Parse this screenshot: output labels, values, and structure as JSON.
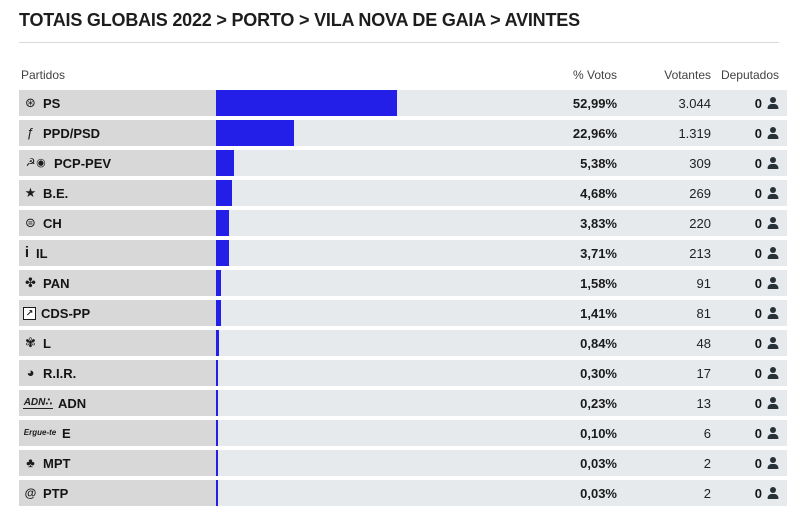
{
  "title": "TOTAIS GLOBAIS 2022 > PORTO > VILA NOVA DE GAIA > AVINTES",
  "table": {
    "headers": {
      "partidos": "Partidos",
      "pct_votos": "% Votos",
      "votantes": "Votantes",
      "deputados": "Deputados"
    }
  },
  "colors": {
    "bar": "#231ee8",
    "row_left_bg": "#d8d8d8",
    "row_right_bg": "#e6eaed",
    "title_text": "#1d1d1d"
  },
  "parties": [
    {
      "abbr": "PS",
      "icon_name": "ps-logo-icon",
      "icon_glyph": "⊛",
      "icon_class": "",
      "pct": "52,99%",
      "pct_value": 52.99,
      "votes": "3.044",
      "deputies": "0"
    },
    {
      "abbr": "PPD/PSD",
      "icon_name": "ppd-psd-logo-icon",
      "icon_glyph": "ƒ",
      "icon_class": "",
      "pct": "22,96%",
      "pct_value": 22.96,
      "votes": "1.319",
      "deputies": "0"
    },
    {
      "abbr": "PCP-PEV",
      "icon_name": "pcp-pev-logo-icon",
      "icon_glyph": "☭◉",
      "icon_class": "icon-pcp",
      "pct": "5,38%",
      "pct_value": 5.38,
      "votes": "309",
      "deputies": "0"
    },
    {
      "abbr": "B.E.",
      "icon_name": "be-logo-icon",
      "icon_glyph": "★",
      "icon_class": "",
      "pct": "4,68%",
      "pct_value": 4.68,
      "votes": "269",
      "deputies": "0"
    },
    {
      "abbr": "CH",
      "icon_name": "ch-logo-icon",
      "icon_glyph": "⊜",
      "icon_class": "",
      "pct": "3,83%",
      "pct_value": 3.83,
      "votes": "220",
      "deputies": "0"
    },
    {
      "abbr": "IL",
      "icon_name": "il-logo-icon",
      "icon_glyph": "i",
      "icon_class": "icon-il",
      "pct": "3,71%",
      "pct_value": 3.71,
      "votes": "213",
      "deputies": "0"
    },
    {
      "abbr": "PAN",
      "icon_name": "pan-logo-icon",
      "icon_glyph": "✤",
      "icon_class": "",
      "pct": "1,58%",
      "pct_value": 1.58,
      "votes": "91",
      "deputies": "0"
    },
    {
      "abbr": "CDS-PP",
      "icon_name": "cds-pp-logo-icon",
      "icon_glyph": "↗",
      "icon_class": "icon-boxed",
      "pct": "1,41%",
      "pct_value": 1.41,
      "votes": "81",
      "deputies": "0"
    },
    {
      "abbr": "L",
      "icon_name": "livre-logo-icon",
      "icon_glyph": "✾",
      "icon_class": "",
      "pct": "0,84%",
      "pct_value": 0.84,
      "votes": "48",
      "deputies": "0"
    },
    {
      "abbr": "R.I.R.",
      "icon_name": "rir-logo-icon",
      "icon_glyph": "◕",
      "icon_class": "",
      "pct": "0,30%",
      "pct_value": 0.3,
      "votes": "17",
      "deputies": "0"
    },
    {
      "abbr": "ADN",
      "icon_name": "adn-logo-icon",
      "icon_glyph": "ADN∴",
      "icon_class": "icon-adn",
      "pct": "0,23%",
      "pct_value": 0.23,
      "votes": "13",
      "deputies": "0"
    },
    {
      "abbr": "E",
      "icon_name": "erguete-logo-icon",
      "icon_glyph": "Ergue-te",
      "icon_class": "icon-erguete",
      "pct": "0,10%",
      "pct_value": 0.1,
      "votes": "6",
      "deputies": "0"
    },
    {
      "abbr": "MPT",
      "icon_name": "mpt-logo-icon",
      "icon_glyph": "♣",
      "icon_class": "",
      "pct": "0,03%",
      "pct_value": 0.03,
      "votes": "2",
      "deputies": "0"
    },
    {
      "abbr": "PTP",
      "icon_name": "ptp-logo-icon",
      "icon_glyph": "@",
      "icon_class": "icon-at",
      "pct": "0,03%",
      "pct_value": 0.03,
      "votes": "2",
      "deputies": "0"
    }
  ],
  "chart_data": {
    "type": "bar",
    "orientation": "horizontal",
    "categories": [
      "PS",
      "PPD/PSD",
      "PCP-PEV",
      "B.E.",
      "CH",
      "IL",
      "PAN",
      "CDS-PP",
      "L",
      "R.I.R.",
      "ADN",
      "E",
      "MPT",
      "PTP"
    ],
    "values": [
      52.99,
      22.96,
      5.38,
      4.68,
      3.83,
      3.71,
      1.58,
      1.41,
      0.84,
      0.3,
      0.23,
      0.1,
      0.03,
      0.03
    ],
    "votantes": [
      3044,
      1319,
      309,
      269,
      220,
      213,
      91,
      81,
      48,
      17,
      13,
      6,
      2,
      2
    ],
    "deputados": [
      0,
      0,
      0,
      0,
      0,
      0,
      0,
      0,
      0,
      0,
      0,
      0,
      0,
      0
    ],
    "title": "TOTAIS GLOBAIS 2022 > PORTO > VILA NOVA DE GAIA > AVINTES",
    "xlabel": "% Votos",
    "ylabel": "Partidos",
    "xlim": [
      0,
      100
    ],
    "grid": false,
    "legend": false
  }
}
